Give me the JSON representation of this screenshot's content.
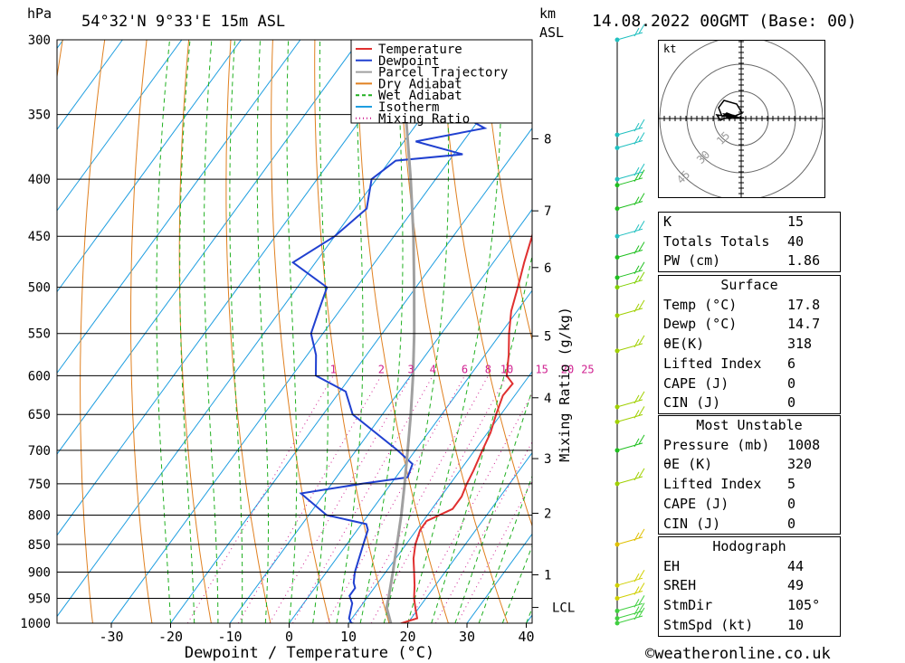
{
  "header": {
    "location": "54°32'N  9°33'E  15m  ASL",
    "time": "14.08.2022  00GMT  (Base: 00)",
    "left_unit": "hPa",
    "right_unit_1": "km",
    "right_unit_2": "ASL"
  },
  "footer": {
    "credit": "©weatheronline.co.uk"
  },
  "legend": [
    {
      "label": "Temperature",
      "color": "#e03030",
      "style": "solid"
    },
    {
      "label": "Dewpoint",
      "color": "#2040d0",
      "style": "solid"
    },
    {
      "label": "Parcel Trajectory",
      "color": "#a0a0a0",
      "style": "solid"
    },
    {
      "label": "Dry Adiabat",
      "color": "#e08020",
      "style": "solid"
    },
    {
      "label": "Wet Adiabat",
      "color": "#20b020",
      "style": "dashed"
    },
    {
      "label": "Isotherm",
      "color": "#1e9ee0",
      "style": "solid"
    },
    {
      "label": "Mixing Ratio",
      "color": "#d02090",
      "style": "dotted"
    }
  ],
  "chart_data": {
    "type": "line",
    "xlabel": "Dewpoint / Temperature (°C)",
    "ylabel": "",
    "mixing_ratio_label": "Mixing Ratio (g/kg)",
    "xlim": [
      -40,
      40
    ],
    "ylim": [
      1000,
      300
    ],
    "x_ticks": [
      -30,
      -20,
      -10,
      0,
      10,
      20,
      30,
      40
    ],
    "pressure_levels": [
      300,
      350,
      400,
      450,
      500,
      550,
      600,
      650,
      700,
      750,
      800,
      850,
      900,
      950,
      1000
    ],
    "mixing_ratio_values": [
      "1",
      "2",
      "3",
      "4",
      "6",
      "8",
      "10",
      "15",
      "20",
      "25"
    ],
    "km_levels": [
      {
        "label": "8",
        "p": 368
      },
      {
        "label": "7",
        "p": 427
      },
      {
        "label": "6",
        "p": 480
      },
      {
        "label": "5",
        "p": 553
      },
      {
        "label": "4",
        "p": 628
      },
      {
        "label": "3",
        "p": 712
      },
      {
        "label": "2",
        "p": 797
      },
      {
        "label": "1",
        "p": 905
      },
      {
        "label": "LCL",
        "p": 968
      }
    ],
    "series": [
      {
        "name": "Temperature",
        "color": "#e03030",
        "points": [
          [
            1008,
            17.8
          ],
          [
            1000,
            19.0
          ],
          [
            990,
            21.0
          ],
          [
            970,
            19.5
          ],
          [
            950,
            18.0
          ],
          [
            925,
            16.5
          ],
          [
            900,
            14.8
          ],
          [
            875,
            13.0
          ],
          [
            850,
            11.6
          ],
          [
            825,
            10.6
          ],
          [
            810,
            10.6
          ],
          [
            790,
            13.5
          ],
          [
            770,
            13.5
          ],
          [
            750,
            12.8
          ],
          [
            730,
            12.3
          ],
          [
            700,
            11.3
          ],
          [
            675,
            10.5
          ],
          [
            650,
            9.2
          ],
          [
            625,
            8.0
          ],
          [
            610,
            8.2
          ],
          [
            600,
            6.2
          ],
          [
            575,
            4.0
          ],
          [
            550,
            1.4
          ],
          [
            525,
            -1.0
          ],
          [
            500,
            -2.8
          ],
          [
            475,
            -4.8
          ],
          [
            450,
            -6.7
          ],
          [
            425,
            -9.0
          ],
          [
            400,
            -11.6
          ],
          [
            385,
            -14.4
          ],
          [
            375,
            -15.2
          ],
          [
            350,
            -16.8
          ],
          [
            325,
            -20.0
          ],
          [
            300,
            -24.5
          ]
        ]
      },
      {
        "name": "Dewpoint",
        "color": "#2040d0",
        "points": [
          [
            1008,
            14.7
          ],
          [
            1000,
            10.5
          ],
          [
            990,
            9.5
          ],
          [
            960,
            8.2
          ],
          [
            945,
            6.8
          ],
          [
            930,
            6.8
          ],
          [
            920,
            5.9
          ],
          [
            900,
            4.8
          ],
          [
            850,
            2.8
          ],
          [
            825,
            1.8
          ],
          [
            815,
            0.8
          ],
          [
            800,
            -7.0
          ],
          [
            775,
            -12.0
          ],
          [
            765,
            -14.0
          ],
          [
            750,
            -5.0
          ],
          [
            740,
            2.0
          ],
          [
            720,
            1.2
          ],
          [
            700,
            -3.0
          ],
          [
            650,
            -15.0
          ],
          [
            620,
            -19.0
          ],
          [
            600,
            -26.0
          ],
          [
            575,
            -28.5
          ],
          [
            550,
            -32.0
          ],
          [
            525,
            -33.5
          ],
          [
            500,
            -35.0
          ],
          [
            475,
            -43.8
          ],
          [
            450,
            -40.0
          ],
          [
            425,
            -38.0
          ],
          [
            400,
            -40.8
          ],
          [
            385,
            -39.0
          ],
          [
            380,
            -28.5
          ],
          [
            370,
            -38.0
          ],
          [
            360,
            -28.0
          ],
          [
            340,
            -40.0
          ],
          [
            300,
            -43.5
          ]
        ]
      },
      {
        "name": "Parcel Trajectory",
        "color": "#a0a0a0",
        "points": [
          [
            1008,
            17.8
          ],
          [
            968,
            14.5
          ],
          [
            950,
            13.7
          ],
          [
            900,
            11.2
          ],
          [
            850,
            8.5
          ],
          [
            800,
            5.6
          ],
          [
            750,
            2.3
          ],
          [
            700,
            -1.3
          ],
          [
            650,
            -5.2
          ],
          [
            600,
            -9.6
          ],
          [
            550,
            -14.6
          ],
          [
            500,
            -20.3
          ],
          [
            450,
            -26.7
          ],
          [
            400,
            -34.2
          ],
          [
            350,
            -43.0
          ],
          [
            300,
            -53.0
          ]
        ]
      }
    ],
    "wind_barbs": [
      {
        "p": 1000,
        "color": "#40d040"
      },
      {
        "p": 990,
        "color": "#40d040"
      },
      {
        "p": 975,
        "color": "#40d040"
      },
      {
        "p": 950,
        "color": "#d0d000"
      },
      {
        "p": 925,
        "color": "#d0d000"
      },
      {
        "p": 850,
        "color": "#e0c000"
      },
      {
        "p": 750,
        "color": "#a0d000"
      },
      {
        "p": 700,
        "color": "#20c020"
      },
      {
        "p": 660,
        "color": "#a0d000"
      },
      {
        "p": 640,
        "color": "#a0d000"
      },
      {
        "p": 570,
        "color": "#a0d000"
      },
      {
        "p": 530,
        "color": "#a0d000"
      },
      {
        "p": 500,
        "color": "#80d000"
      },
      {
        "p": 490,
        "color": "#20c020"
      },
      {
        "p": 470,
        "color": "#20c020"
      },
      {
        "p": 450,
        "color": "#20c0c0"
      },
      {
        "p": 425,
        "color": "#20c020"
      },
      {
        "p": 405,
        "color": "#20c020"
      },
      {
        "p": 400,
        "color": "#20c0c0"
      },
      {
        "p": 375,
        "color": "#20c0c0"
      },
      {
        "p": 365,
        "color": "#20c0c0"
      },
      {
        "p": 300,
        "color": "#20c0c0"
      }
    ]
  },
  "hodograph": {
    "unit": "kt",
    "ring_labels": [
      "15",
      "30",
      "45"
    ]
  },
  "indices": {
    "general": [
      {
        "label": "K",
        "value": "15"
      },
      {
        "label": "Totals Totals",
        "value": "40"
      },
      {
        "label": "PW (cm)",
        "value": "1.86"
      }
    ],
    "surface_title": "Surface",
    "surface": [
      {
        "label": "Temp (°C)",
        "value": "17.8"
      },
      {
        "label": "Dewp (°C)",
        "value": "14.7"
      },
      {
        "label": "θE(K)",
        "value": "318"
      },
      {
        "label": "Lifted Index",
        "value": "6"
      },
      {
        "label": "CAPE (J)",
        "value": "0"
      },
      {
        "label": "CIN (J)",
        "value": "0"
      }
    ],
    "unstable_title": "Most Unstable",
    "unstable": [
      {
        "label": "Pressure (mb)",
        "value": "1008"
      },
      {
        "label": "θE (K)",
        "value": "320"
      },
      {
        "label": "Lifted Index",
        "value": "5"
      },
      {
        "label": "CAPE (J)",
        "value": "0"
      },
      {
        "label": "CIN (J)",
        "value": "0"
      }
    ],
    "hodograph_title": "Hodograph",
    "hodo": [
      {
        "label": "EH",
        "value": "44"
      },
      {
        "label": "SREH",
        "value": "49"
      },
      {
        "label": "StmDir",
        "value": "105°"
      },
      {
        "label": "StmSpd (kt)",
        "value": "10"
      }
    ]
  }
}
